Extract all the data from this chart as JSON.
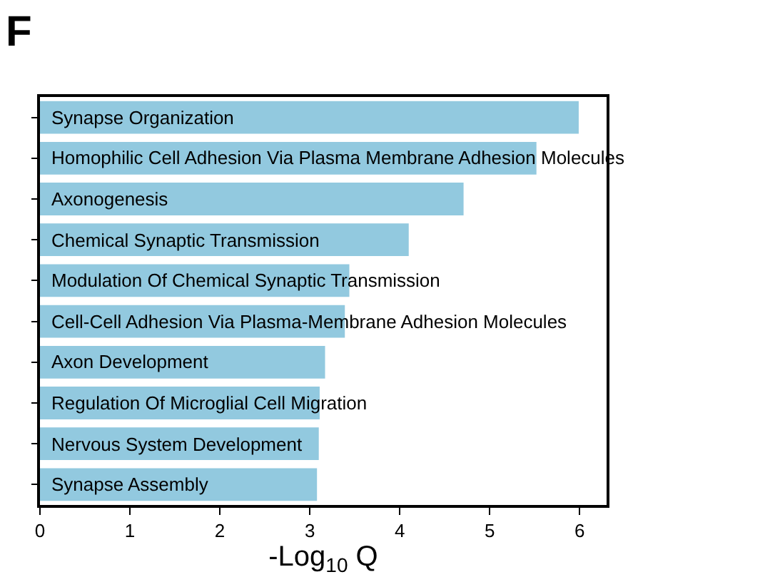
{
  "chart_data": {
    "type": "bar",
    "orientation": "horizontal",
    "annotations": [
      "F"
    ],
    "xlabel": "-Log$_{10}$ Q",
    "categories": [
      "Synapse Organization",
      "Homophilic Cell Adhesion Via Plasma Membrane Adhesion Molecules",
      "Axonogenesis",
      "Chemical Synaptic Transmission",
      "Modulation Of Chemical Synaptic Transmission",
      "Cell-Cell Adhesion Via Plasma-Membrane Adhesion Molecules",
      "Axon Development",
      "Regulation Of Microglial Cell Migration",
      "Nervous System Development",
      "Synapse Assembly"
    ],
    "values": [
      5.99,
      5.52,
      4.71,
      4.1,
      3.44,
      3.39,
      3.17,
      3.11,
      3.1,
      3.08
    ],
    "color": "#92c9df",
    "xlim": [
      0,
      6.3
    ],
    "xticks": [
      0,
      1,
      2,
      3,
      4,
      5,
      6
    ]
  }
}
